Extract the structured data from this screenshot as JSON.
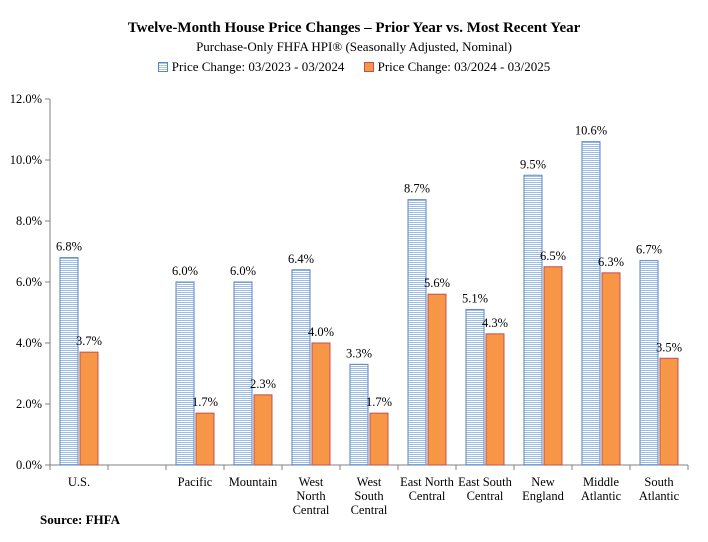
{
  "chart_data": {
    "type": "bar",
    "title": "Twelve-Month House Price Changes – Prior Year vs. Most Recent Year",
    "subtitle": "Purchase-Only FHFA HPI® (Seasonally Adjusted, Nominal)",
    "categories": [
      [
        "U.S."
      ],
      [
        ""
      ],
      [
        "Pacific"
      ],
      [
        "Mountain"
      ],
      [
        "West",
        "North",
        "Central"
      ],
      [
        "West",
        "South",
        "Central"
      ],
      [
        "East North",
        "Central"
      ],
      [
        "East South",
        "Central"
      ],
      [
        "New",
        "England"
      ],
      [
        "Middle",
        "Atlantic"
      ],
      [
        "South",
        "Atlantic"
      ]
    ],
    "series": [
      {
        "name": "Price Change:  03/2023 - 03/2024",
        "color": "#a9c7ea",
        "values": [
          6.8,
          null,
          6.0,
          6.0,
          6.4,
          3.3,
          8.7,
          5.1,
          9.5,
          10.6,
          6.7
        ],
        "labels": [
          "6.8%",
          "",
          "6.0%",
          "6.0%",
          "6.4%",
          "3.3%",
          "8.7%",
          "5.1%",
          "9.5%",
          "10.6%",
          "6.7%"
        ]
      },
      {
        "name": "Price Change:  03/2024 - 03/2025",
        "color": "#f79646",
        "values": [
          3.7,
          null,
          1.7,
          2.3,
          4.0,
          1.7,
          5.6,
          4.3,
          6.5,
          6.3,
          3.5
        ],
        "labels": [
          "3.7%",
          "",
          "1.7%",
          "2.3%",
          "4.0%",
          "1.7%",
          "5.6%",
          "4.3%",
          "6.5%",
          "6.3%",
          "3.5%"
        ]
      }
    ],
    "ylim": [
      0,
      12
    ],
    "yticks": [
      "0.0%",
      "2.0%",
      "4.0%",
      "6.0%",
      "8.0%",
      "10.0%",
      "12.0%"
    ],
    "grid": false,
    "legend_position": "top"
  },
  "source": "Source: FHFA"
}
